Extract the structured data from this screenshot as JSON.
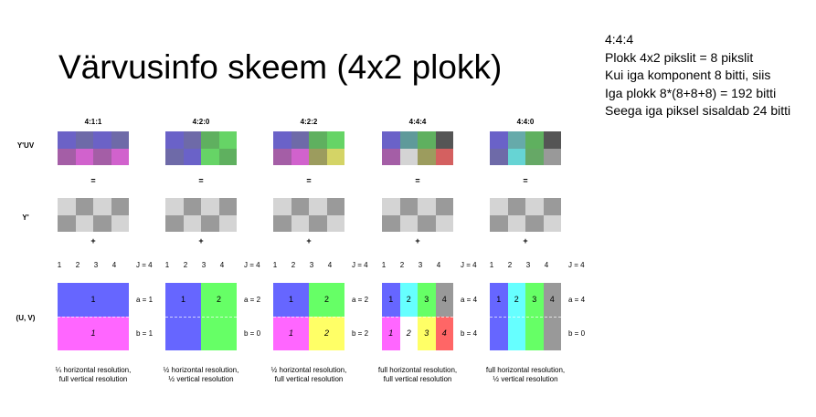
{
  "title": "Värvusinfo skeem (4x2 plokk)",
  "info": {
    "lines": [
      "4:4:4",
      "Plokk 4x2 pikslit = 8 pikslit",
      "Kui iga komponent 8 bitti, siis",
      "Iga plokk 8*(8+8+8) = 192 bitti",
      "Seega iga piksel sisaldab 24 bitti"
    ]
  },
  "row_labels": {
    "yuv": "Y'UV",
    "y": "Y'",
    "uv": "(U, V)"
  },
  "operators": {
    "equals": "=",
    "plus": "+"
  },
  "column_numbers": [
    "1",
    "2",
    "3",
    "4"
  ],
  "j_label": "J = 4",
  "luma_pattern": [
    [
      "#6e6e6e",
      "#c9c9c9",
      "#6e6e6e",
      "#c9c9c9"
    ],
    [
      "#c9c9c9",
      "#6e6e6e",
      "#c9c9c9",
      "#6e6e6e"
    ]
  ],
  "luma_colors": {
    "dark": "#9a9a9a",
    "light": "#d4d4d4"
  },
  "schemes": [
    {
      "name": "4:1:1",
      "a": "a = 1",
      "b": "b = 1",
      "caption": [
        "¼ horizontal resolution,",
        "full vertical resolution"
      ],
      "yuv": [
        [
          "#6b62c6",
          "#6e6aa8",
          "#6b62c6",
          "#6e6aa8"
        ],
        [
          "#a45ea6",
          "#d162cd",
          "#a45ea6",
          "#d162cd"
        ]
      ],
      "uv_top": [
        {
          "label": "1",
          "color": "#6666ff",
          "span": 4
        }
      ],
      "uv_bottom": [
        {
          "label": "1",
          "color": "#ff66ff",
          "span": 4
        }
      ]
    },
    {
      "name": "4:2:0",
      "a": "a = 2",
      "b": "b = 0",
      "caption": [
        "½ horizontal resolution,",
        "½ vertical resolution"
      ],
      "yuv": [
        [
          "#6a62c8",
          "#6e6aa8",
          "#5fb05f",
          "#66d466"
        ],
        [
          "#6e6aa8",
          "#6a62c8",
          "#66d466",
          "#5fb05f"
        ]
      ],
      "uv_top": [
        {
          "label": "1",
          "color": "#6666ff",
          "span": 2
        },
        {
          "label": "2",
          "color": "#66ff66",
          "span": 2
        }
      ],
      "uv_bottom": [
        {
          "label": "",
          "color": "#6666ff",
          "span": 2
        },
        {
          "label": "",
          "color": "#66ff66",
          "span": 2
        }
      ]
    },
    {
      "name": "4:2:2",
      "a": "a = 2",
      "b": "b = 2",
      "caption": [
        "½ horizontal resolution,",
        "full vertical resolution"
      ],
      "yuv": [
        [
          "#6a62c8",
          "#6e6aa8",
          "#5fb05f",
          "#66d466"
        ],
        [
          "#a45ea6",
          "#d162cd",
          "#9c9c5e",
          "#d4d466"
        ]
      ],
      "uv_top": [
        {
          "label": "1",
          "color": "#6666ff",
          "span": 2
        },
        {
          "label": "2",
          "color": "#66ff66",
          "span": 2
        }
      ],
      "uv_bottom": [
        {
          "label": "1",
          "color": "#ff66ff",
          "span": 2
        },
        {
          "label": "2",
          "color": "#ffff66",
          "span": 2
        }
      ]
    },
    {
      "name": "4:4:4",
      "a": "a = 4",
      "b": "b = 4",
      "caption": [
        "full horizontal resolution,",
        "full vertical resolution"
      ],
      "yuv": [
        [
          "#6a62c8",
          "#5f9a9a",
          "#5fb05f",
          "#555555"
        ],
        [
          "#a45ea6",
          "#d4d4d4",
          "#9c9c5e",
          "#d46060"
        ]
      ],
      "uv_top": [
        {
          "label": "1",
          "color": "#6666ff",
          "span": 1
        },
        {
          "label": "2",
          "color": "#66ffff",
          "span": 1
        },
        {
          "label": "3",
          "color": "#66ff66",
          "span": 1
        },
        {
          "label": "4",
          "color": "#999999",
          "span": 1
        }
      ],
      "uv_bottom": [
        {
          "label": "1",
          "color": "#ff66ff",
          "span": 1
        },
        {
          "label": "2",
          "color": "#ffffff",
          "span": 1
        },
        {
          "label": "3",
          "color": "#ffff66",
          "span": 1
        },
        {
          "label": "4",
          "color": "#ff6666",
          "span": 1
        }
      ]
    },
    {
      "name": "4:4:0",
      "a": "a = 4",
      "b": "b = 0",
      "caption": [
        "full horizontal resolution,",
        "½ vertical resolution"
      ],
      "yuv": [
        [
          "#6a62c8",
          "#66aaaa",
          "#5fb05f",
          "#555555"
        ],
        [
          "#6e6aa8",
          "#66d4d4",
          "#66a866",
          "#999999"
        ]
      ],
      "uv_top": [
        {
          "label": "1",
          "color": "#6666ff",
          "span": 1
        },
        {
          "label": "2",
          "color": "#66ffff",
          "span": 1
        },
        {
          "label": "3",
          "color": "#66ff66",
          "span": 1
        },
        {
          "label": "4",
          "color": "#999999",
          "span": 1
        }
      ],
      "uv_bottom": [
        {
          "label": "",
          "color": "#6666ff",
          "span": 1
        },
        {
          "label": "",
          "color": "#66ffff",
          "span": 1
        },
        {
          "label": "",
          "color": "#66ff66",
          "span": 1
        },
        {
          "label": "",
          "color": "#999999",
          "span": 1
        }
      ]
    }
  ]
}
